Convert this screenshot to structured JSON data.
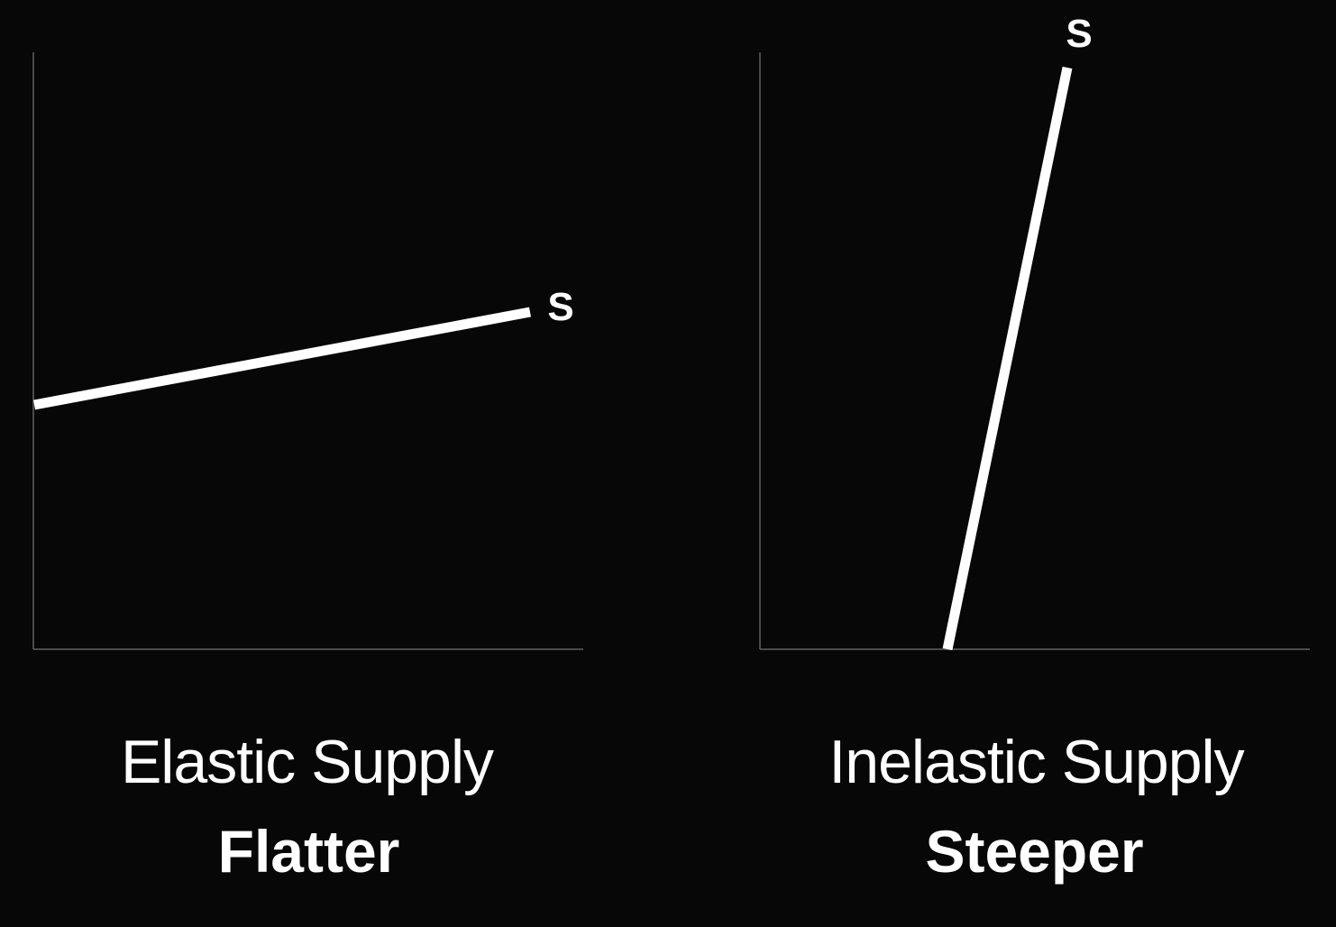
{
  "panels": [
    {
      "curve_label": "S",
      "title": "Elastic Supply",
      "subtitle": "Flatter"
    },
    {
      "curve_label": "S",
      "title": "Inelastic Supply",
      "subtitle": "Steeper"
    }
  ],
  "colors": {
    "background": "#070707",
    "curve": "#ffffff",
    "axis": "#4a4a4a",
    "text": "#ffffff"
  }
}
